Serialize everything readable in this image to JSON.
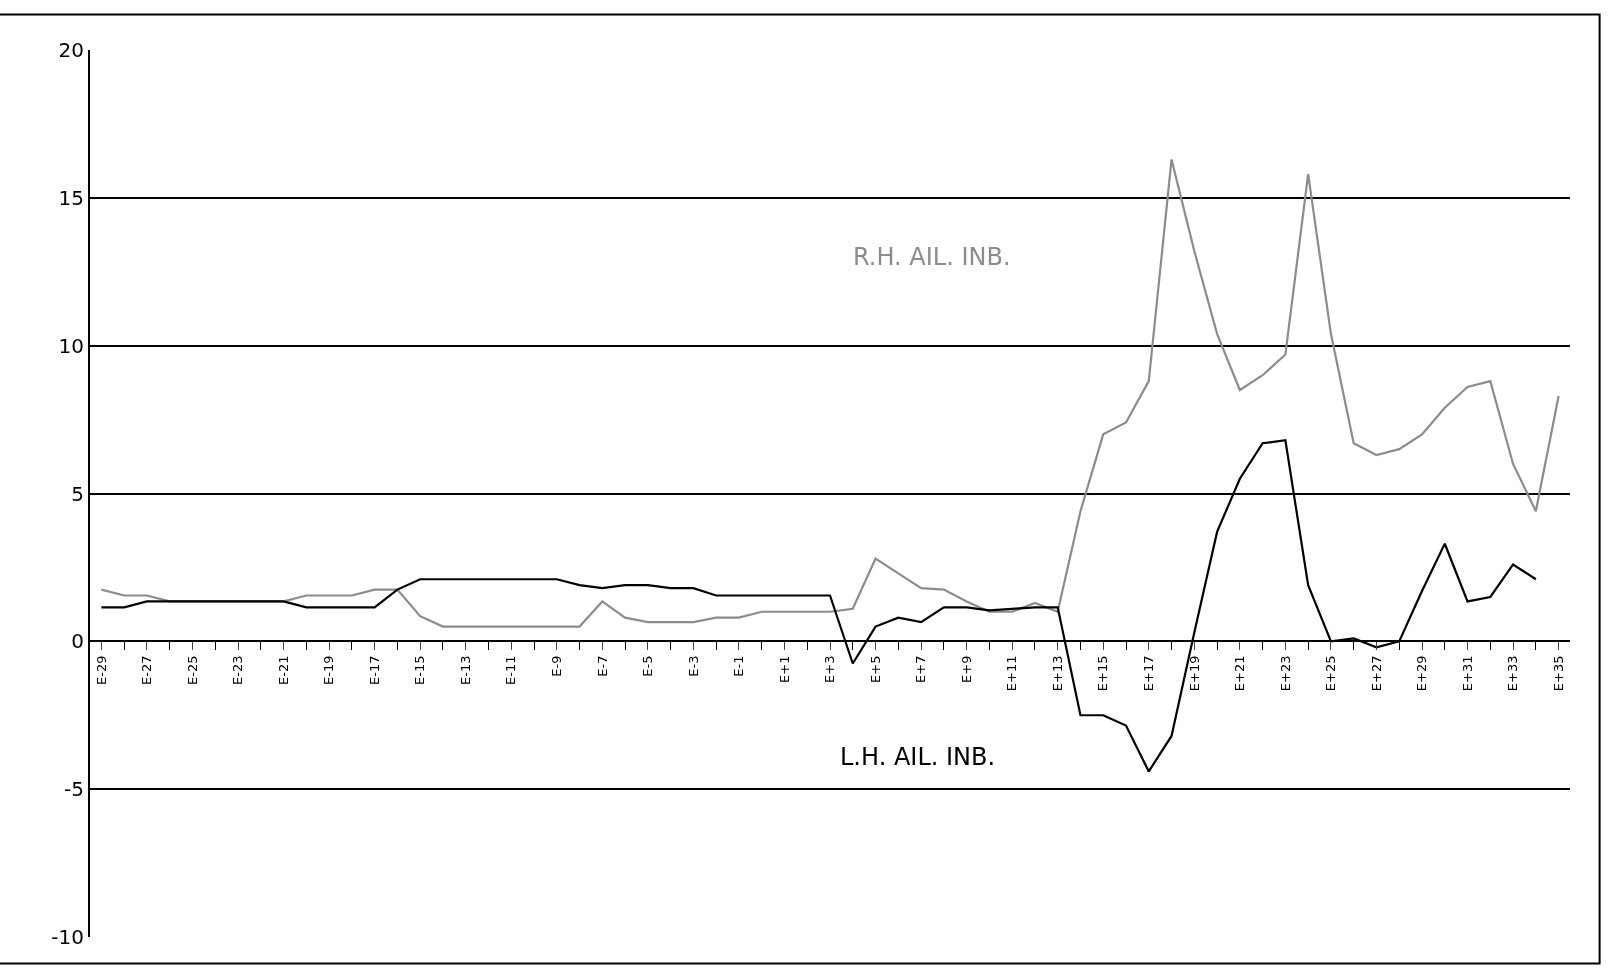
{
  "chart_data": {
    "type": "line",
    "categories": [
      "E-29",
      null,
      "E-27",
      null,
      "E-25",
      null,
      "E-23",
      null,
      "E-21",
      null,
      "E-19",
      null,
      "E-17",
      null,
      "E-15",
      null,
      "E-13",
      null,
      "E-11",
      null,
      "E-9",
      null,
      "E-7",
      null,
      "E-5",
      null,
      "E-3",
      null,
      "E-1",
      null,
      "E+1",
      null,
      "E+3",
      null,
      "E+5",
      null,
      "E+7",
      null,
      "E+9",
      null,
      "E+11",
      null,
      "E+13",
      null,
      "E+15",
      null,
      "E+17",
      null,
      "E+19",
      null,
      "E+21",
      null,
      "E+23",
      null,
      "E+25",
      null,
      "E+27",
      null,
      "E+29",
      null,
      "E+31",
      null,
      "E+33",
      null,
      "E+35"
    ],
    "series": [
      {
        "name": "R.H. AIL. INB.",
        "color": "#8c8c8c",
        "values": [
          1.75,
          1.55,
          1.55,
          1.35,
          1.35,
          1.35,
          1.35,
          1.35,
          1.35,
          1.55,
          1.55,
          1.55,
          1.75,
          1.75,
          0.85,
          0.5,
          0.5,
          0.5,
          0.5,
          0.5,
          0.5,
          0.5,
          1.35,
          0.8,
          0.65,
          0.65,
          0.65,
          0.8,
          0.8,
          1.0,
          1.0,
          1.0,
          1.0,
          1.1,
          2.8,
          2.3,
          1.8,
          1.75,
          1.35,
          1.0,
          1.0,
          1.3,
          1.0,
          4.4,
          7.0,
          7.4,
          8.8,
          16.3,
          13.2,
          10.4,
          8.5,
          9.0,
          9.7,
          15.8,
          10.4,
          6.7,
          6.3,
          6.5,
          7.0,
          7.9,
          8.6,
          8.8,
          6.0,
          4.4,
          8.3
        ]
      },
      {
        "name": "L.H. AIL. INB.",
        "color": "#000000",
        "values": [
          1.15,
          1.15,
          1.35,
          1.35,
          1.35,
          1.35,
          1.35,
          1.35,
          1.35,
          1.15,
          1.15,
          1.15,
          1.15,
          1.75,
          2.1,
          2.1,
          2.1,
          2.1,
          2.1,
          2.1,
          2.1,
          1.9,
          1.8,
          1.9,
          1.9,
          1.8,
          1.8,
          1.55,
          1.55,
          1.55,
          1.55,
          1.55,
          1.55,
          -0.75,
          0.5,
          0.8,
          0.65,
          1.15,
          1.15,
          1.05,
          1.1,
          1.15,
          1.15,
          -2.5,
          -2.5,
          -2.85,
          -4.4,
          -3.2,
          0.3,
          3.7,
          5.5,
          6.7,
          6.8,
          1.9,
          0.0,
          0.1,
          -0.2,
          0.0,
          1.7,
          3.3,
          1.35,
          1.5,
          2.6,
          2.1,
          null
        ]
      }
    ],
    "ylim": [
      -10,
      20
    ],
    "yticks": [
      -10,
      -5,
      0,
      5,
      10,
      15,
      20
    ],
    "grid": "y",
    "legend": false,
    "line_style": "solid",
    "marker": "none"
  }
}
